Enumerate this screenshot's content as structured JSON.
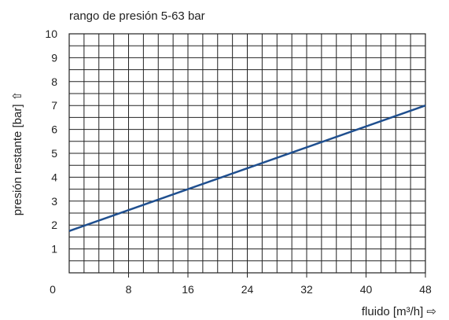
{
  "chart_data": {
    "type": "line",
    "title": "rango de presión 5-63 bar",
    "xlabel": "fluido [m³/h] ⇨",
    "ylabel": "presión restante [bar] ⇧",
    "xlim": [
      0,
      48
    ],
    "ylim": [
      0,
      10
    ],
    "x_ticks": [
      "0",
      "8",
      "16",
      "24",
      "32",
      "40",
      "48"
    ],
    "y_ticks": [
      "1",
      "2",
      "3",
      "4",
      "5",
      "6",
      "7",
      "8",
      "9",
      "10"
    ],
    "grid": true,
    "series": [
      {
        "x": [
          0,
          48
        ],
        "y": [
          1.75,
          7.0
        ]
      }
    ],
    "colors": {
      "line": "#1f4f8f",
      "grid": "#222222"
    }
  }
}
